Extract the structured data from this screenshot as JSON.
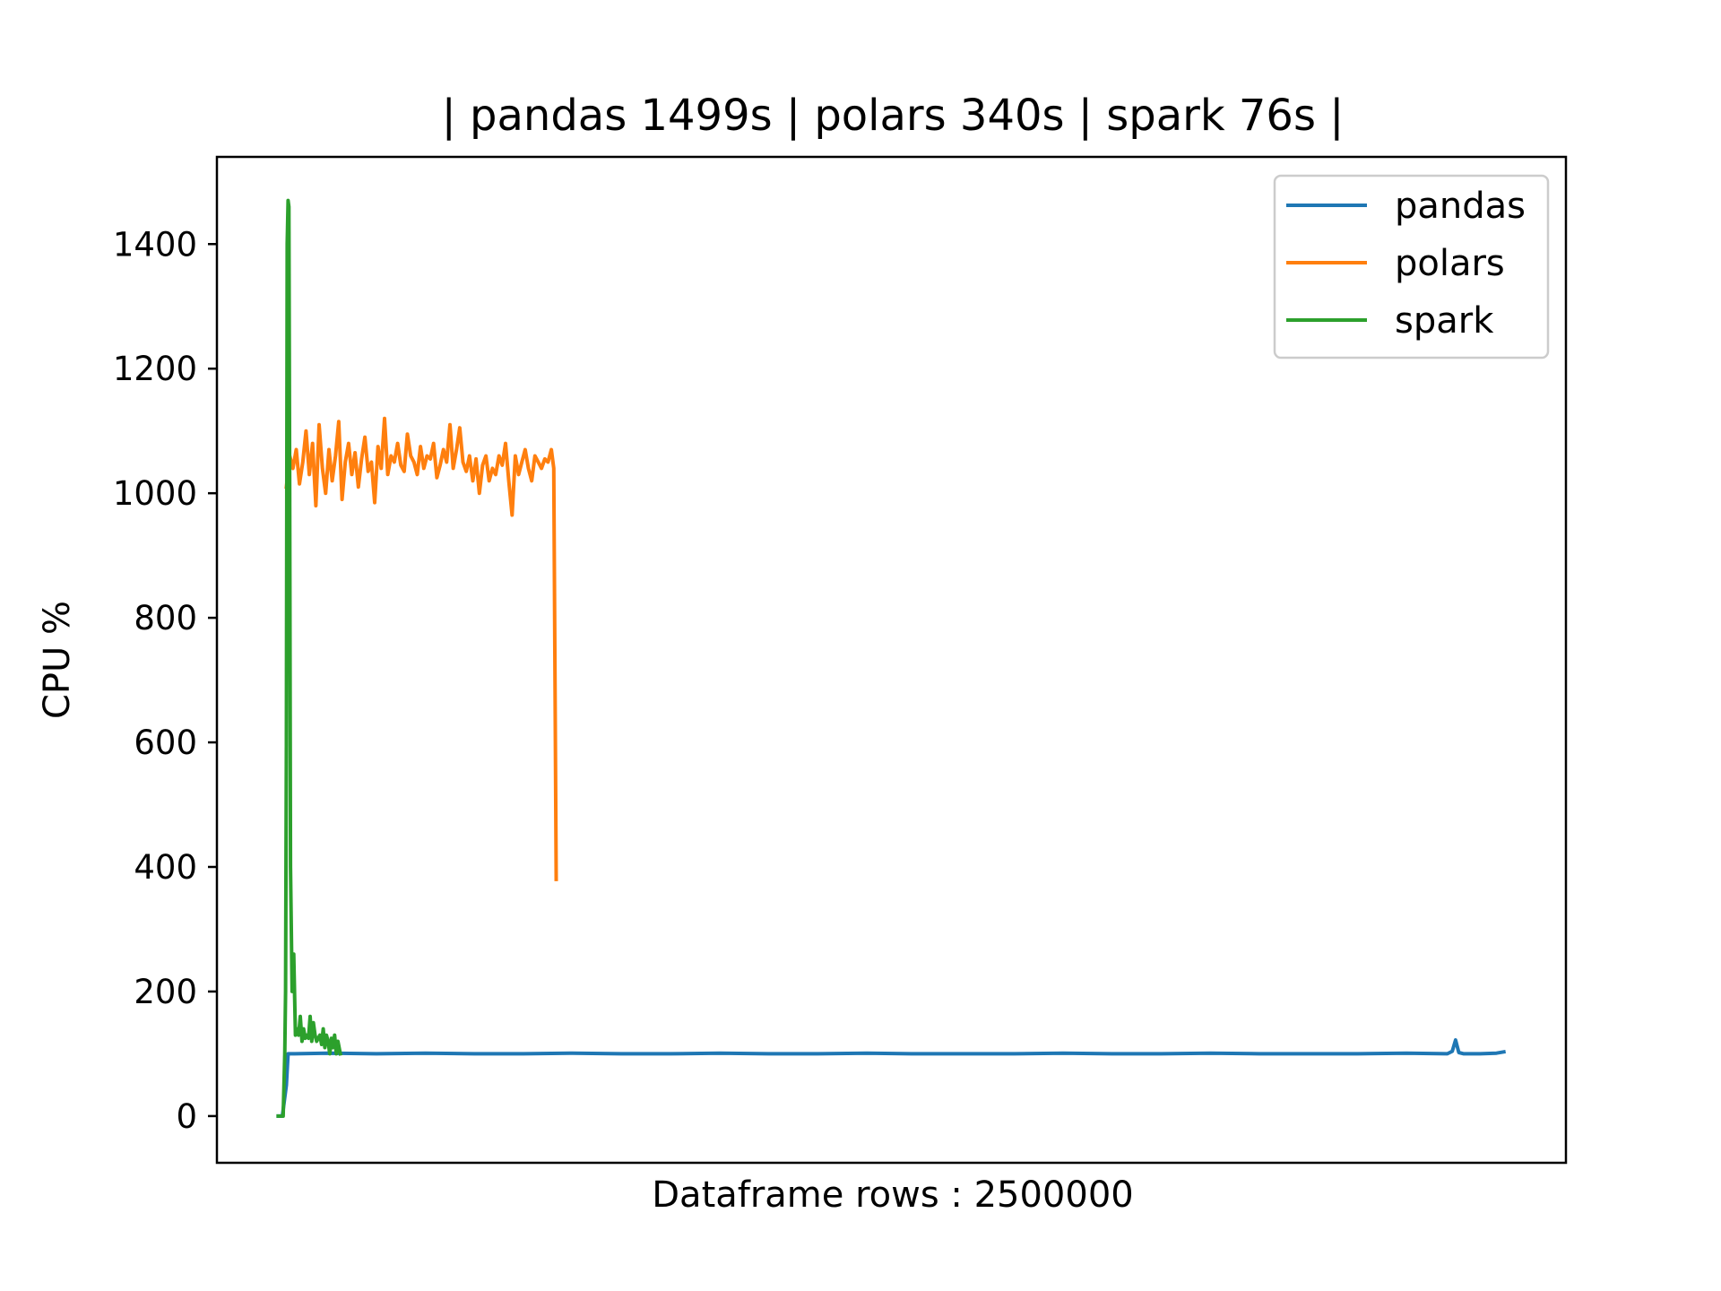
{
  "chart_data": {
    "type": "line",
    "title": "| pandas 1499s | polars 340s | spark 76s |",
    "xlabel": "Dataframe rows : 2500000",
    "ylabel": "CPU %",
    "xlim": [
      -75,
      1575
    ],
    "ylim": [
      -75,
      1540
    ],
    "x_ticks_shown": false,
    "yticks": [
      0,
      200,
      400,
      600,
      800,
      1000,
      1200,
      1400
    ],
    "grid": false,
    "legend_position": "top-right",
    "series": [
      {
        "name": "pandas",
        "color": "#1f77b4",
        "x": [
          0,
          5,
          10,
          12,
          15,
          20,
          60,
          120,
          180,
          240,
          300,
          360,
          420,
          480,
          540,
          600,
          660,
          720,
          780,
          840,
          900,
          960,
          1020,
          1080,
          1140,
          1200,
          1260,
          1320,
          1380,
          1430,
          1436,
          1440,
          1444,
          1450,
          1470,
          1490,
          1499
        ],
        "y": [
          0,
          0,
          50,
          100,
          100,
          100,
          101,
          100,
          101,
          100,
          100,
          101,
          100,
          100,
          101,
          100,
          100,
          101,
          100,
          100,
          100,
          101,
          100,
          100,
          101,
          100,
          100,
          100,
          101,
          100,
          104,
          122,
          102,
          100,
          100,
          101,
          103
        ]
      },
      {
        "name": "polars",
        "color": "#ff7f0e",
        "x": [
          10,
          14,
          18,
          22,
          26,
          30,
          34,
          38,
          42,
          46,
          50,
          54,
          58,
          62,
          66,
          70,
          74,
          78,
          82,
          86,
          90,
          94,
          98,
          102,
          106,
          110,
          114,
          118,
          122,
          126,
          130,
          134,
          138,
          142,
          146,
          150,
          154,
          158,
          162,
          166,
          170,
          174,
          178,
          182,
          186,
          190,
          194,
          198,
          202,
          206,
          210,
          214,
          218,
          222,
          226,
          230,
          234,
          238,
          242,
          246,
          250,
          254,
          258,
          262,
          266,
          270,
          274,
          278,
          282,
          286,
          290,
          294,
          298,
          302,
          306,
          310,
          314,
          318,
          322,
          326,
          330,
          334,
          337,
          340
        ],
        "y": [
          1010,
          1060,
          1040,
          1070,
          1015,
          1050,
          1100,
          1030,
          1080,
          980,
          1110,
          1040,
          1000,
          1070,
          1020,
          1060,
          1115,
          990,
          1050,
          1080,
          1030,
          1065,
          1010,
          1055,
          1090,
          1035,
          1050,
          985,
          1075,
          1040,
          1120,
          1030,
          1060,
          1050,
          1080,
          1045,
          1035,
          1095,
          1060,
          1050,
          1030,
          1075,
          1040,
          1060,
          1055,
          1080,
          1025,
          1045,
          1070,
          1050,
          1110,
          1040,
          1070,
          1105,
          1050,
          1035,
          1060,
          1020,
          1055,
          1000,
          1045,
          1060,
          1020,
          1040,
          1030,
          1060,
          1045,
          1080,
          1020,
          965,
          1060,
          1030,
          1050,
          1070,
          1040,
          1020,
          1060,
          1050,
          1040,
          1055,
          1050,
          1070,
          1040,
          380
        ]
      },
      {
        "name": "spark",
        "color": "#2ca02c",
        "x": [
          0,
          4,
          6,
          8,
          9,
          10,
          11,
          12,
          13,
          14,
          15,
          17,
          19,
          21,
          23,
          25,
          27,
          29,
          31,
          33,
          35,
          37,
          39,
          41,
          43,
          45,
          47,
          49,
          51,
          53,
          55,
          57,
          59,
          61,
          63,
          65,
          67,
          69,
          71,
          73,
          76
        ],
        "y": [
          0,
          0,
          0,
          100,
          200,
          600,
          1400,
          1470,
          1460,
          1000,
          400,
          200,
          260,
          130,
          140,
          130,
          160,
          120,
          140,
          125,
          130,
          125,
          160,
          120,
          150,
          130,
          120,
          125,
          130,
          115,
          140,
          110,
          130,
          120,
          100,
          125,
          110,
          130,
          100,
          120,
          100
        ]
      }
    ]
  }
}
